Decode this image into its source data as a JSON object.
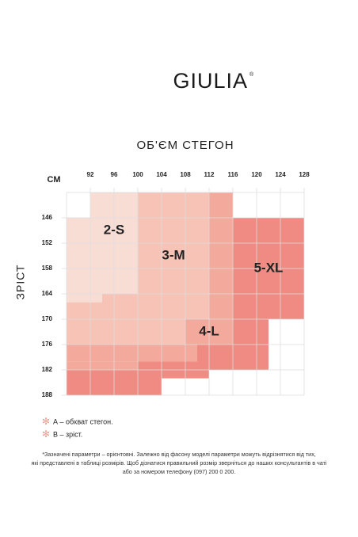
{
  "header": {
    "brand": "GIULIA",
    "mark": "®"
  },
  "size_chart": {
    "x_title": "ОБ'ЄМ СТЕГОН",
    "unit": "СМ",
    "y_title": "ЗРІСТ",
    "xlim": [
      88,
      128
    ],
    "ylim": [
      140,
      188
    ],
    "xticks": [
      92,
      96,
      100,
      104,
      108,
      112,
      116,
      120,
      124,
      128
    ],
    "yticks": [
      146,
      152,
      158,
      164,
      170,
      176,
      182,
      188
    ],
    "zones": [
      {
        "label": "2-S",
        "color": "#f8ddd5",
        "cells": [
          [
            92,
            100,
            146,
            152
          ],
          [
            92,
            100,
            140,
            146
          ],
          [
            88,
            92,
            146,
            164
          ],
          [
            92,
            100,
            152,
            164
          ],
          [
            88,
            94,
            164,
            166
          ]
        ]
      },
      {
        "label": "3-M",
        "color": "#f6c3b6",
        "cells": [
          [
            100,
            112,
            140,
            170
          ],
          [
            94,
            100,
            164,
            170
          ],
          [
            88,
            94,
            166,
            170
          ],
          [
            88,
            108,
            170,
            176
          ]
        ]
      },
      {
        "label": "4-L",
        "color": "#f3a99b",
        "cells": [
          [
            108,
            116,
            170,
            176
          ],
          [
            112,
            116,
            140,
            170
          ],
          [
            88,
            110,
            176,
            180
          ],
          [
            88,
            100,
            180,
            182
          ]
        ]
      },
      {
        "label": "5-XL",
        "color": "#ef8b82",
        "cells": [
          [
            116,
            128,
            146,
            170
          ],
          [
            116,
            122,
            170,
            182
          ],
          [
            110,
            116,
            176,
            182
          ],
          [
            100,
            110,
            180,
            182
          ],
          [
            88,
            104,
            182,
            188
          ],
          [
            104,
            112,
            182,
            184
          ]
        ]
      }
    ]
  },
  "legend": [
    "А – обхват стегон.",
    "В – зріст."
  ],
  "footnote": [
    "*Зазначені параметри – орієнтовні. Залежно від фасону моделі параметри можуть відрізнятися від тих,",
    "які представлені в таблиці розмірів. Щоб дізнатися правильний розмір зверніться до наших консультантів в чаті",
    "або за номером телефону (097) 200 0 200."
  ]
}
